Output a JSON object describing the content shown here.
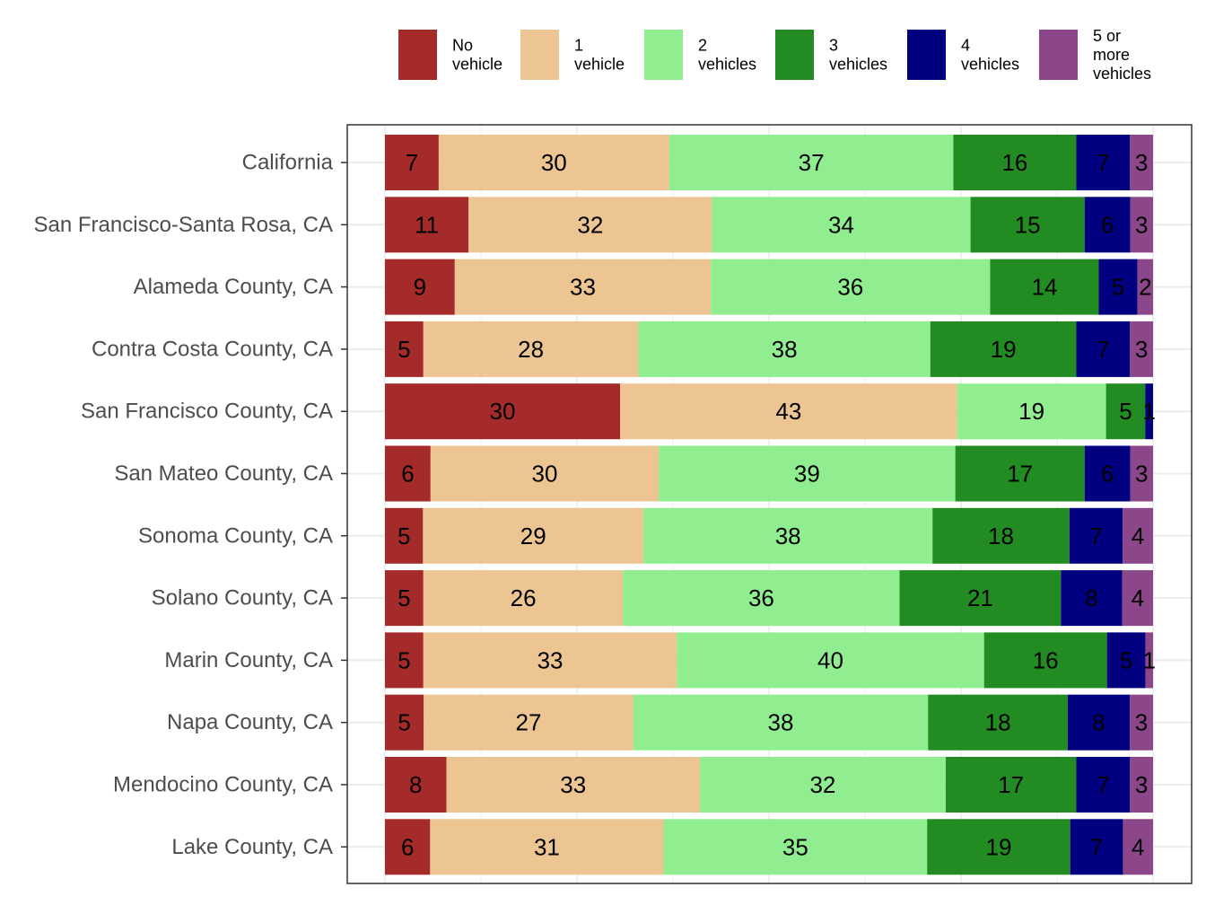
{
  "chart_data": {
    "type": "bar",
    "orientation": "horizontal",
    "stacked": true,
    "title": "",
    "xlabel": "",
    "ylabel": "",
    "xlim": [
      0,
      100
    ],
    "grid": true,
    "legend_position": "top",
    "categories": [
      "California",
      "San Francisco-Santa Rosa, CA",
      "Alameda County, CA",
      "Contra Costa County, CA",
      "San Francisco County, CA",
      "San Mateo County, CA",
      "Sonoma County, CA",
      "Solano County, CA",
      "Marin County, CA",
      "Napa County, CA",
      "Mendocino County, CA",
      "Lake County, CA"
    ],
    "series": [
      {
        "name": "No vehicle",
        "legend_lines": [
          "No",
          "vehicle"
        ],
        "color": "#a52a2a",
        "values": [
          7,
          11,
          9,
          5,
          30,
          6,
          5,
          5,
          5,
          5,
          8,
          6
        ]
      },
      {
        "name": "1 vehicle",
        "legend_lines": [
          "1",
          "vehicle"
        ],
        "color": "#edc592",
        "values": [
          30,
          32,
          33,
          28,
          43,
          30,
          29,
          26,
          33,
          27,
          33,
          31
        ]
      },
      {
        "name": "2 vehicles",
        "legend_lines": [
          "2",
          "vehicles"
        ],
        "color": "#90ee90",
        "values": [
          37,
          34,
          36,
          38,
          19,
          39,
          38,
          36,
          40,
          38,
          32,
          35
        ]
      },
      {
        "name": "3 vehicles",
        "legend_lines": [
          "3",
          "vehicles"
        ],
        "color": "#228b22",
        "values": [
          16,
          15,
          14,
          19,
          5,
          17,
          18,
          21,
          16,
          18,
          17,
          19
        ]
      },
      {
        "name": "4 vehicles",
        "legend_lines": [
          "4",
          "vehicles"
        ],
        "color": "#000080",
        "values": [
          7,
          6,
          5,
          7,
          1,
          6,
          7,
          8,
          5,
          8,
          7,
          7
        ]
      },
      {
        "name": "5 or more vehicles",
        "legend_lines": [
          "5 or",
          "more",
          "vehicles"
        ],
        "color": "#8b4789",
        "values": [
          3,
          3,
          2,
          3,
          0,
          3,
          4,
          4,
          1,
          3,
          3,
          4
        ]
      }
    ]
  }
}
